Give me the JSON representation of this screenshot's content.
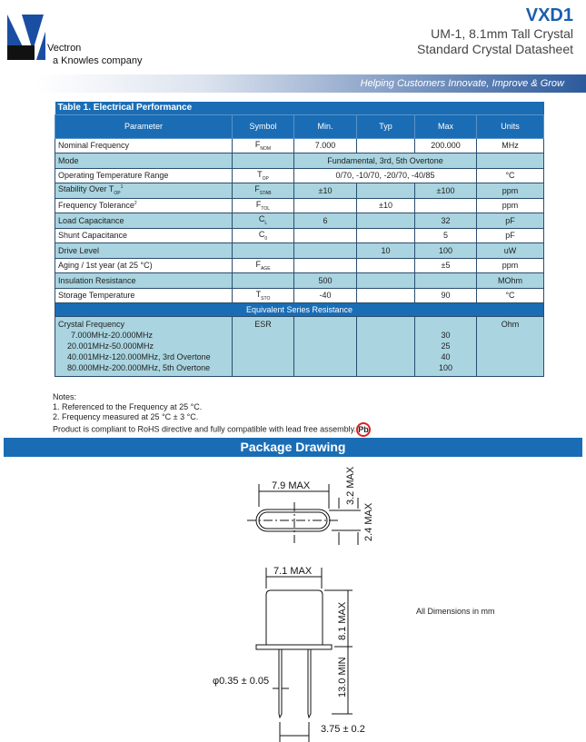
{
  "header": {
    "logo_text": "Vectron",
    "logo_tagline": "a Knowles company",
    "product": "VXD1",
    "subtitle1": "UM-1, 8.1mm Tall Crystal",
    "subtitle2": "Standard Crystal Datasheet",
    "banner": "Helping Customers Innovate, Improve & Grow"
  },
  "table": {
    "title": "Table 1. Electrical Performance",
    "columns": [
      "Parameter",
      "Symbol",
      "Min.",
      "Typ",
      "Max",
      "Units"
    ],
    "rows": [
      {
        "param": "Nominal Frequency",
        "sym": "F",
        "sub": "NOM",
        "min": "7.000",
        "typ": "",
        "max": "200.000",
        "units": "MHz"
      },
      {
        "param": "Mode",
        "span": "Fundamental, 3rd, 5th Overtone"
      },
      {
        "param": "Operating Temperature Range",
        "sym": "T",
        "sub": "OP",
        "span": "0/70, -10/70, -20/70, -40/85",
        "units": "°C"
      },
      {
        "param": "Stability Over T",
        "psub": "OP",
        "psup": "1",
        "sym": "F",
        "sub": "STAB",
        "min": "±10",
        "typ": "",
        "max": "±100",
        "units": "ppm"
      },
      {
        "param": "Frequency Tolerance",
        "psup": "2",
        "sym": "F",
        "sub": "TOL",
        "min": "",
        "typ": "±10",
        "max": "",
        "units": "ppm"
      },
      {
        "param": "Load Capacitance",
        "sym": "C",
        "sub": "L",
        "min": "6",
        "typ": "",
        "max": "32",
        "units": "pF"
      },
      {
        "param": "Shunt Capacitance",
        "sym": "C",
        "sub": "0",
        "min": "",
        "typ": "",
        "max": "5",
        "units": "pF"
      },
      {
        "param": "Drive Level",
        "sym": "",
        "sub": "",
        "min": "",
        "typ": "10",
        "max": "100",
        "units": "uW"
      },
      {
        "param": "Aging / 1st year (at 25 °C)",
        "sym": "F",
        "sub": "AGE",
        "min": "",
        "typ": "",
        "max": "±5",
        "units": "ppm"
      },
      {
        "param": "Insulation Resistance",
        "sym": "",
        "sub": "",
        "min": "500",
        "typ": "",
        "max": "",
        "units": "MOhm"
      },
      {
        "param": "Storage Temperature",
        "sym": "T",
        "sub": "STO",
        "min": "-40",
        "typ": "",
        "max": "90",
        "units": "°C"
      }
    ],
    "esr_header": "Equivalent Series Resistance",
    "esr": {
      "param": "Crystal Frequency",
      "ranges": [
        "7.000MHz-20.000MHz",
        "20.001MHz-50.000MHz",
        "40.001MHz-120.000MHz, 3rd Overtone",
        "80.000MHz-200.000MHz, 5th Overtone"
      ],
      "sym": "ESR",
      "max": [
        "30",
        "25",
        "40",
        "100"
      ],
      "units": "Ohm"
    }
  },
  "notes": {
    "title": "Notes:",
    "items": [
      "1. Referenced to the Frequency at 25 °C.",
      "2. Frequency measured at 25 °C ± 3 °C.",
      "Product is compliant to RoHS directive and fully compatible with lead free assembly."
    ],
    "pb_icon": "Pb"
  },
  "package": {
    "title": "Package Drawing",
    "dims": {
      "top_width": "7.9 MAX",
      "top_h1": "3.2 MAX",
      "top_h2": "2.4 MAX",
      "body_width": "7.1 MAX",
      "body_height": "8.1 MAX",
      "lead_length": "13.0 MIN",
      "lead_dia": "φ0.35 ± 0.05",
      "lead_pitch": "3.75 ± 0.2"
    },
    "note": "All Dimensions in mm"
  },
  "colors": {
    "brand": "#1a6db5",
    "row_alt": "#a9d4e0"
  }
}
